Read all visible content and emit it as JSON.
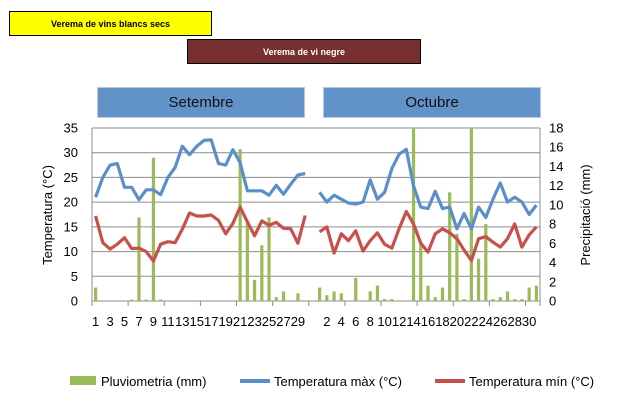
{
  "banners": {
    "white_harvest": "Verema de vins blancs secs",
    "red_harvest": "Verema de vi negre"
  },
  "months": [
    "Setembre",
    "Octubre"
  ],
  "colors": {
    "precip": "#9bbb59",
    "tmax": "#5b8fcc",
    "tmin": "#c8504b",
    "yellow": "#ffff00",
    "darkred": "#772f2f",
    "monthbox": "#6193c8"
  },
  "chart_data": {
    "type": "bar+line",
    "ylabel": "Temperatura (°C)",
    "y2label": "Precipitació (mm)",
    "ylim": [
      0,
      35
    ],
    "y2lim": [
      0,
      18
    ],
    "yticks": [
      "0",
      "5",
      "10",
      "15",
      "20",
      "25",
      "30",
      "35"
    ],
    "y2ticks": [
      "0",
      "2",
      "4",
      "6",
      "8",
      "10",
      "12",
      "14",
      "16",
      "18"
    ],
    "grid": true,
    "legend_position": "bottom",
    "legend": [
      "Pluviometria (mm)",
      "Temperatura màx (°C)",
      "Temperatura mín (°C)"
    ],
    "groups": [
      {
        "month": "Setembre",
        "days": [
          1,
          2,
          3,
          4,
          5,
          6,
          7,
          8,
          9,
          10,
          11,
          12,
          13,
          14,
          15,
          16,
          17,
          18,
          19,
          20,
          21,
          22,
          23,
          24,
          25,
          26,
          27,
          28,
          29,
          30
        ],
        "tick_labels": [
          "1",
          "3",
          "5",
          "7",
          "9",
          "11",
          "13",
          "15",
          "17",
          "19",
          "21",
          "23",
          "25",
          "27",
          "29"
        ],
        "precip_mm": [
          1.4,
          0,
          0,
          0,
          0,
          0.15,
          8.7,
          0.15,
          14.9,
          0.15,
          0,
          0,
          0,
          0,
          0,
          0,
          0,
          0,
          0,
          0,
          15.8,
          8.2,
          2.2,
          5.8,
          8.7,
          0.4,
          1.0,
          0,
          0.8,
          0
        ],
        "tmax": [
          21,
          25,
          27.5,
          27.8,
          23,
          23,
          20.5,
          22.5,
          22.5,
          21.5,
          25,
          27,
          31.3,
          29.6,
          31.3,
          32.5,
          32.6,
          27.8,
          27.5,
          30.6,
          28,
          22.3,
          22.3,
          22.3,
          21.4,
          23.4,
          21.6,
          23.6,
          25.5,
          25.8
        ],
        "tmin": [
          17.2,
          11.8,
          10.5,
          11.5,
          12.8,
          10.6,
          10.7,
          10,
          8.1,
          11.5,
          12,
          11.8,
          14.5,
          17.8,
          17.2,
          17.2,
          17.4,
          16.3,
          13.6,
          15.7,
          19,
          16,
          13.2,
          16.2,
          15.3,
          15.9,
          14.7,
          14.6,
          11.7,
          17.3
        ]
      },
      {
        "month": "Octubre",
        "days": [
          1,
          2,
          3,
          4,
          5,
          6,
          7,
          8,
          9,
          10,
          11,
          12,
          13,
          14,
          15,
          16,
          17,
          18,
          19,
          20,
          21,
          22,
          23,
          24,
          25,
          26,
          27,
          28,
          29,
          30,
          31
        ],
        "tick_labels": [
          "2",
          "4",
          "6",
          "8",
          "10",
          "12",
          "14",
          "16",
          "18",
          "20",
          "22",
          "24",
          "26",
          "28",
          "30"
        ],
        "precip_mm": [
          1.4,
          0.6,
          1.0,
          0.8,
          0,
          2.4,
          0,
          1.0,
          1.6,
          0.2,
          0.2,
          0,
          0,
          18,
          6,
          1.6,
          0.4,
          1.4,
          11.3,
          7,
          0.2,
          18,
          4.4,
          8,
          0.2,
          0.4,
          1.0,
          0.2,
          0.2,
          1.4,
          1.6
        ],
        "tmax": [
          22,
          20,
          21.4,
          20.6,
          19.8,
          19.6,
          20,
          24.5,
          20.6,
          22,
          26.8,
          29.7,
          30.7,
          23.3,
          19,
          18.7,
          22.2,
          18.7,
          19,
          14.6,
          17.7,
          14.6,
          19,
          16.9,
          20.6,
          23.9,
          20,
          21,
          20,
          17.5,
          19.4
        ],
        "tmin": [
          14,
          15,
          9.7,
          13.6,
          12.2,
          14.2,
          10.1,
          12.2,
          13.8,
          11.5,
          10.7,
          14.6,
          18.1,
          15.6,
          11.7,
          9.9,
          13.6,
          14.6,
          13.8,
          12.6,
          10.3,
          8.2,
          12.6,
          13,
          11.9,
          10.9,
          12.6,
          15.6,
          10.9,
          13.4,
          15
        ]
      }
    ]
  }
}
